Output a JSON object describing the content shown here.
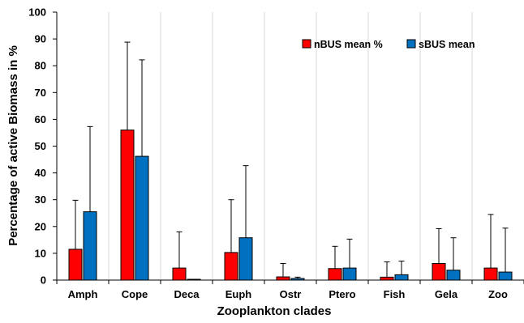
{
  "chart_data": {
    "type": "bar",
    "xlabel": "Zooplankton clades",
    "ylabel": "Percentage of active Biomass in %",
    "ylim": [
      0,
      100
    ],
    "yticks": [
      0,
      10,
      20,
      30,
      40,
      50,
      60,
      70,
      80,
      90,
      100
    ],
    "grid": "vertical",
    "legend_position": "top-right",
    "categories": [
      "Amph",
      "Cope",
      "Deca",
      "Euph",
      "Ostr",
      "Ptero",
      "Fish",
      "Gela",
      "Zoo"
    ],
    "series": [
      {
        "name": "nBUS mean %",
        "color": "#ff0000",
        "values": [
          11.5,
          56,
          4.5,
          10.3,
          1.2,
          4.3,
          1.1,
          6.2,
          4.5
        ],
        "error_upper": [
          29.8,
          88.8,
          18,
          30,
          6.2,
          12.6,
          6.8,
          19.2,
          24.5
        ]
      },
      {
        "name": "sBUS mean",
        "color": "#0070c0",
        "values": [
          25.5,
          46.2,
          0.3,
          15.8,
          0.6,
          4.5,
          2,
          3.7,
          3
        ],
        "error_upper": [
          57.3,
          82.2,
          0.3,
          42.7,
          1.1,
          15.3,
          7.1,
          15.8,
          19.4
        ]
      }
    ]
  }
}
